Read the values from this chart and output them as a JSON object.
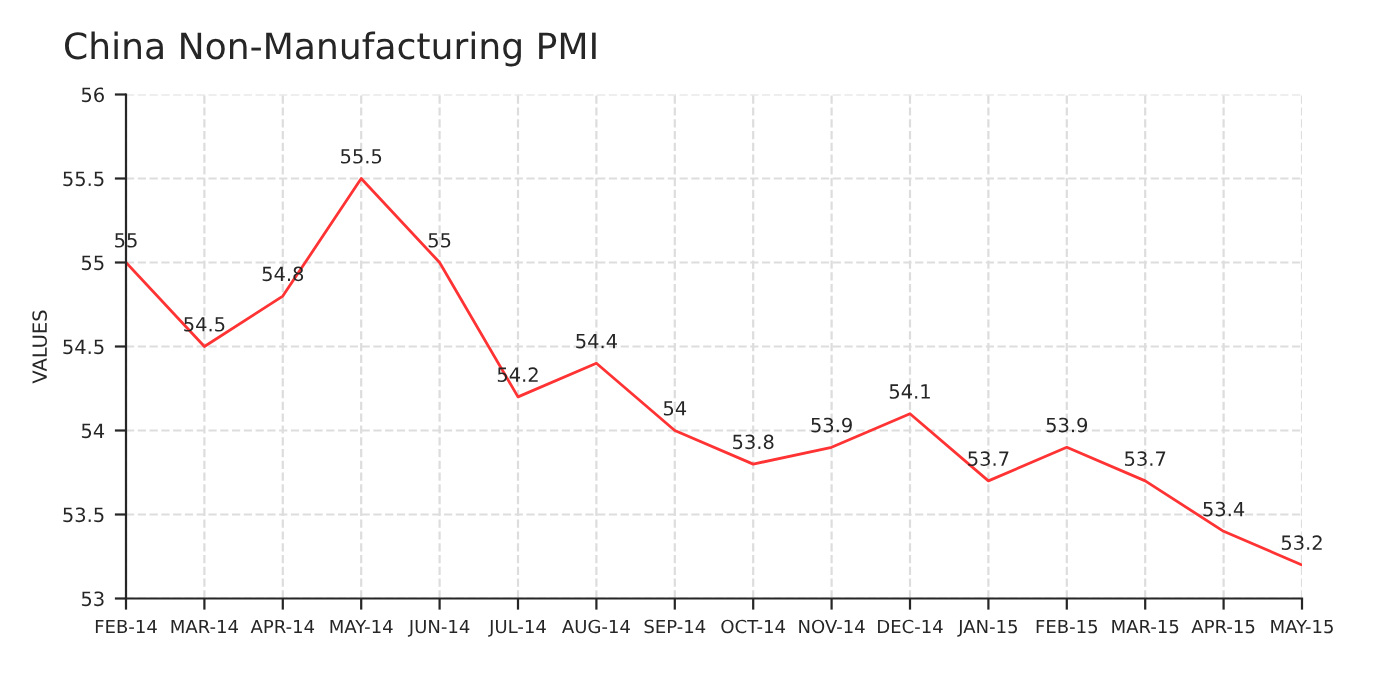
{
  "chart_data": {
    "type": "line",
    "title": "China Non-Manufacturing PMI",
    "ylabel": "VALUES",
    "categories": [
      "FEB-14",
      "MAR-14",
      "APR-14",
      "MAY-14",
      "JUN-14",
      "JUL-14",
      "AUG-14",
      "SEP-14",
      "OCT-14",
      "NOV-14",
      "DEC-14",
      "JAN-15",
      "FEB-15",
      "MAR-15",
      "APR-15",
      "MAY-15"
    ],
    "series": [
      {
        "color": "#ff3333",
        "values": [
          55,
          54.5,
          54.8,
          55.5,
          55,
          54.2,
          54.4,
          54,
          53.8,
          53.9,
          54.1,
          53.7,
          53.9,
          53.7,
          53.4,
          53.2
        ]
      }
    ],
    "ylim": [
      53,
      56
    ],
    "yticks": [
      53,
      53.5,
      54,
      54.5,
      55,
      55.5,
      56
    ],
    "grid": true,
    "data_labels": true,
    "marker": "none",
    "line_style": "solid",
    "legend": false
  }
}
